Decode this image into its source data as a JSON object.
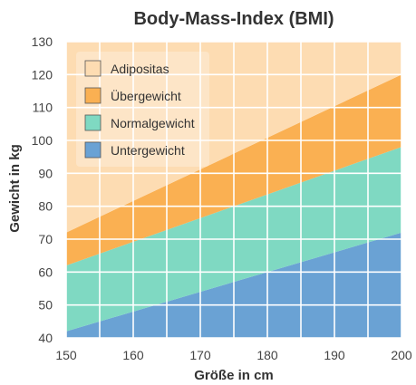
{
  "chart_data": {
    "type": "area",
    "title": "Body-Mass-Index (BMI)",
    "xlabel": "Größe in cm",
    "ylabel": "Gewicht in kg",
    "xlim": [
      150,
      200
    ],
    "ylim": [
      40,
      130
    ],
    "x_ticks": [
      150,
      160,
      170,
      180,
      190,
      200
    ],
    "y_ticks": [
      40,
      50,
      60,
      70,
      80,
      90,
      100,
      110,
      120,
      130
    ],
    "grid": true,
    "legend_position": "top-left",
    "x": [
      150,
      200
    ],
    "series": [
      {
        "name": "Untergewicht",
        "color": "#6aa2d4",
        "lower": [
          40,
          40
        ],
        "upper": [
          42,
          72
        ]
      },
      {
        "name": "Normalgewicht",
        "color": "#7fd9c2",
        "lower": [
          42,
          72
        ],
        "upper": [
          62,
          98
        ]
      },
      {
        "name": "Übergewicht",
        "color": "#fab052",
        "lower": [
          62,
          98
        ],
        "upper": [
          72,
          120
        ]
      },
      {
        "name": "Adipositas",
        "color": "#fddcb2",
        "lower": [
          72,
          120
        ],
        "upper": [
          130,
          130
        ]
      }
    ],
    "legend_order": [
      "Adipositas",
      "Übergewicht",
      "Normalgewicht",
      "Untergewicht"
    ]
  }
}
